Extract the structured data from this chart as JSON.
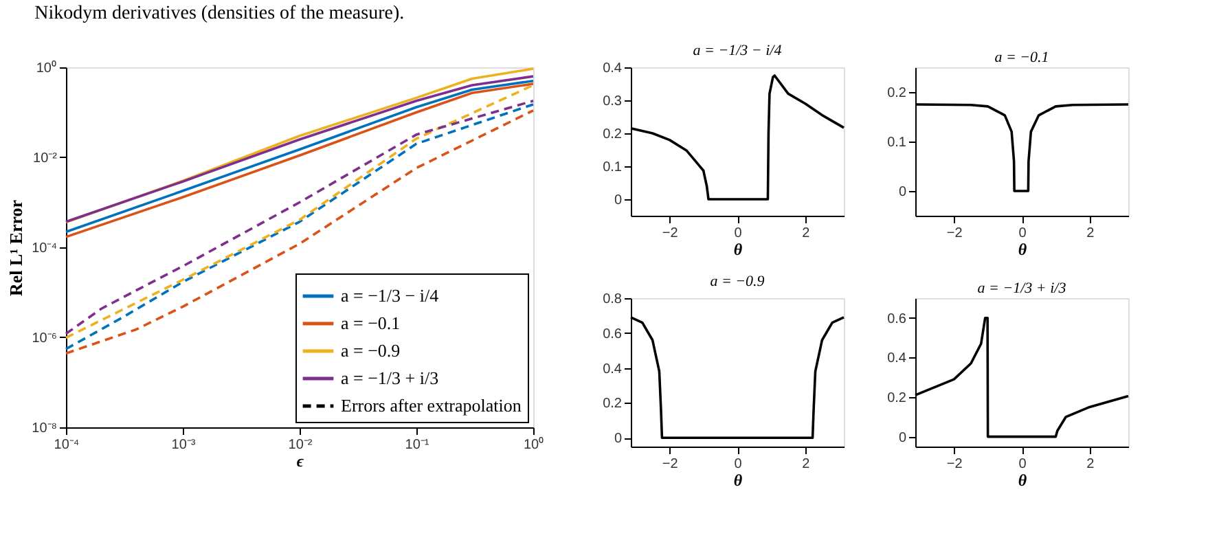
{
  "chart_data": [
    {
      "type": "line",
      "annotations": [
        "Nikodym derivatives (densities of the measure)."
      ],
      "xlabel": "ϵ",
      "ylabel": "Rel L¹ Error",
      "log": "xy",
      "xlim": [
        0.0001,
        1
      ],
      "ylim": [
        1e-08,
        1
      ],
      "xticks": [
        {
          "value": 0.0001,
          "label": "10⁻⁴"
        },
        {
          "value": 0.001,
          "label": "10⁻³"
        },
        {
          "value": 0.01,
          "label": "10⁻²"
        },
        {
          "value": 0.1,
          "label": "10⁻¹"
        },
        {
          "value": 1,
          "label": "10⁰"
        }
      ],
      "yticks": [
        {
          "value": 1e-08,
          "label": "10⁻⁸"
        },
        {
          "value": 1e-06,
          "label": "10⁻⁶"
        },
        {
          "value": 0.0001,
          "label": "10⁻⁴"
        },
        {
          "value": 0.01,
          "label": "10⁻²"
        },
        {
          "value": 1,
          "label": "10⁰"
        }
      ],
      "legend": "bottom right",
      "grid": false,
      "marker": "none",
      "series": [
        {
          "name": "a = −1/3 − i/4",
          "color": "#0072bd",
          "line_style": "solid",
          "x": [
            0.0001,
            0.001,
            0.01,
            0.1,
            0.3,
            1
          ],
          "values": [
            0.00022,
            0.0018,
            0.015,
            0.13,
            0.32,
            0.5
          ]
        },
        {
          "name": "a = −0.1",
          "color": "#d95319",
          "line_style": "solid",
          "x": [
            0.0001,
            0.001,
            0.01,
            0.1,
            0.3,
            1
          ],
          "values": [
            0.00017,
            0.0013,
            0.011,
            0.1,
            0.27,
            0.43
          ]
        },
        {
          "name": "a = −0.9",
          "color": "#edb120",
          "line_style": "solid",
          "x": [
            0.0001,
            0.001,
            0.01,
            0.1,
            0.3,
            1
          ],
          "values": [
            0.00036,
            0.003,
            0.03,
            0.21,
            0.56,
            0.93
          ]
        },
        {
          "name": "a = −1/3 + i/3",
          "color": "#7e2f8e",
          "line_style": "solid",
          "x": [
            0.0001,
            0.001,
            0.01,
            0.1,
            0.3,
            1
          ],
          "values": [
            0.00037,
            0.0029,
            0.025,
            0.18,
            0.4,
            0.63
          ]
        },
        {
          "color": "#0072bd",
          "line_style": "dashed",
          "x": [
            0.0001,
            0.0003,
            0.001,
            0.01,
            0.1,
            1
          ],
          "values": [
            5.5e-07,
            2.7e-06,
            1.7e-05,
            0.00037,
            0.02,
            0.15
          ]
        },
        {
          "color": "#d95319",
          "line_style": "dashed",
          "x": [
            0.0001,
            0.0004,
            0.001,
            0.01,
            0.1,
            1
          ],
          "values": [
            4.4e-07,
            1.5e-06,
            4.8e-06,
            0.00012,
            0.0058,
            0.11
          ]
        },
        {
          "color": "#edb120",
          "line_style": "dashed",
          "x": [
            0.0001,
            0.001,
            0.01,
            0.1,
            1
          ],
          "values": [
            9.8e-07,
            1.9e-05,
            0.00041,
            0.026,
            0.4
          ]
        },
        {
          "color": "#7e2f8e",
          "line_style": "dashed",
          "x": [
            0.0001,
            0.0002,
            0.0005,
            0.001,
            0.01,
            0.1,
            1
          ],
          "values": [
            1.2e-06,
            4.3e-06,
            1.5e-05,
            3.8e-05,
            0.001,
            0.032,
            0.18
          ]
        },
        {
          "name": "Errors after extrapolation",
          "color": "#000000",
          "line_style": "dashed"
        }
      ]
    },
    {
      "type": "line",
      "title": "a = −1/3 − i/4",
      "xlabel": "θ",
      "xlim": [
        -3.14,
        3.14
      ],
      "ylim": [
        -0.05,
        0.4
      ],
      "xticks": [
        -2,
        0,
        2
      ],
      "yticks": [
        0,
        0.1,
        0.2,
        0.3,
        0.4
      ],
      "grid": false,
      "marker": "none",
      "series": [
        {
          "color": "#000000",
          "line_style": "solid",
          "x": [
            -3.14,
            -2.5,
            -2,
            -1.5,
            -1,
            -0.9,
            -0.85,
            0.9,
            0.92,
            0.95,
            1.05,
            1.1,
            1.5,
            2,
            2.5,
            3.14
          ],
          "values": [
            0.215,
            0.2,
            0.18,
            0.148,
            0.087,
            0.04,
            0,
            0,
            0.2,
            0.32,
            0.37,
            0.375,
            0.32,
            0.29,
            0.255,
            0.217
          ]
        }
      ]
    },
    {
      "type": "line",
      "title": "a = −0.1",
      "xlabel": "θ",
      "xlim": [
        -3.14,
        3.14
      ],
      "ylim": [
        -0.05,
        0.25
      ],
      "xticks": [
        -2,
        0,
        2
      ],
      "yticks": [
        0,
        0.1,
        0.2
      ],
      "grid": false,
      "marker": "none",
      "series": [
        {
          "color": "#000000",
          "line_style": "solid",
          "x": [
            -3.14,
            -1.5,
            -1,
            -0.5,
            -0.3,
            -0.23,
            -0.22,
            0.19,
            0.2,
            0.27,
            0.5,
            1,
            1.5,
            3.14
          ],
          "values": [
            0.175,
            0.174,
            0.171,
            0.153,
            0.12,
            0.06,
            0,
            0,
            0.06,
            0.12,
            0.153,
            0.171,
            0.174,
            0.175
          ]
        }
      ]
    },
    {
      "type": "line",
      "title": "a = −0.9",
      "xlabel": "θ",
      "xlim": [
        -3.14,
        3.14
      ],
      "ylim": [
        -0.05,
        0.8
      ],
      "xticks": [
        -2,
        0,
        2
      ],
      "yticks": [
        0,
        0.2,
        0.4,
        0.6,
        0.8
      ],
      "grid": false,
      "marker": "none",
      "series": [
        {
          "color": "#000000",
          "line_style": "solid",
          "x": [
            -3.14,
            -2.8,
            -2.5,
            -2.3,
            -2.25,
            -2.22,
            2.22,
            2.25,
            2.3,
            2.5,
            2.8,
            3.14
          ],
          "values": [
            0.69,
            0.66,
            0.56,
            0.38,
            0.16,
            0,
            0,
            0.16,
            0.38,
            0.56,
            0.66,
            0.69
          ]
        }
      ]
    },
    {
      "type": "line",
      "title": "a = −1/3 + i/3",
      "xlabel": "θ",
      "xlim": [
        -3.14,
        3.14
      ],
      "ylim": [
        -0.05,
        0.7
      ],
      "xticks": [
        -2,
        0,
        2
      ],
      "yticks": [
        0,
        0.2,
        0.4,
        0.6
      ],
      "grid": false,
      "marker": "none",
      "series": [
        {
          "color": "#000000",
          "line_style": "solid",
          "x": [
            -3.14,
            -2,
            -1.5,
            -1.2,
            -1.08,
            -1.01,
            -1.0,
            1.0,
            1.05,
            1.3,
            2,
            3.14
          ],
          "values": [
            0.21,
            0.29,
            0.37,
            0.47,
            0.6,
            0.6,
            0,
            0,
            0.03,
            0.1,
            0.15,
            0.205
          ]
        }
      ]
    }
  ]
}
